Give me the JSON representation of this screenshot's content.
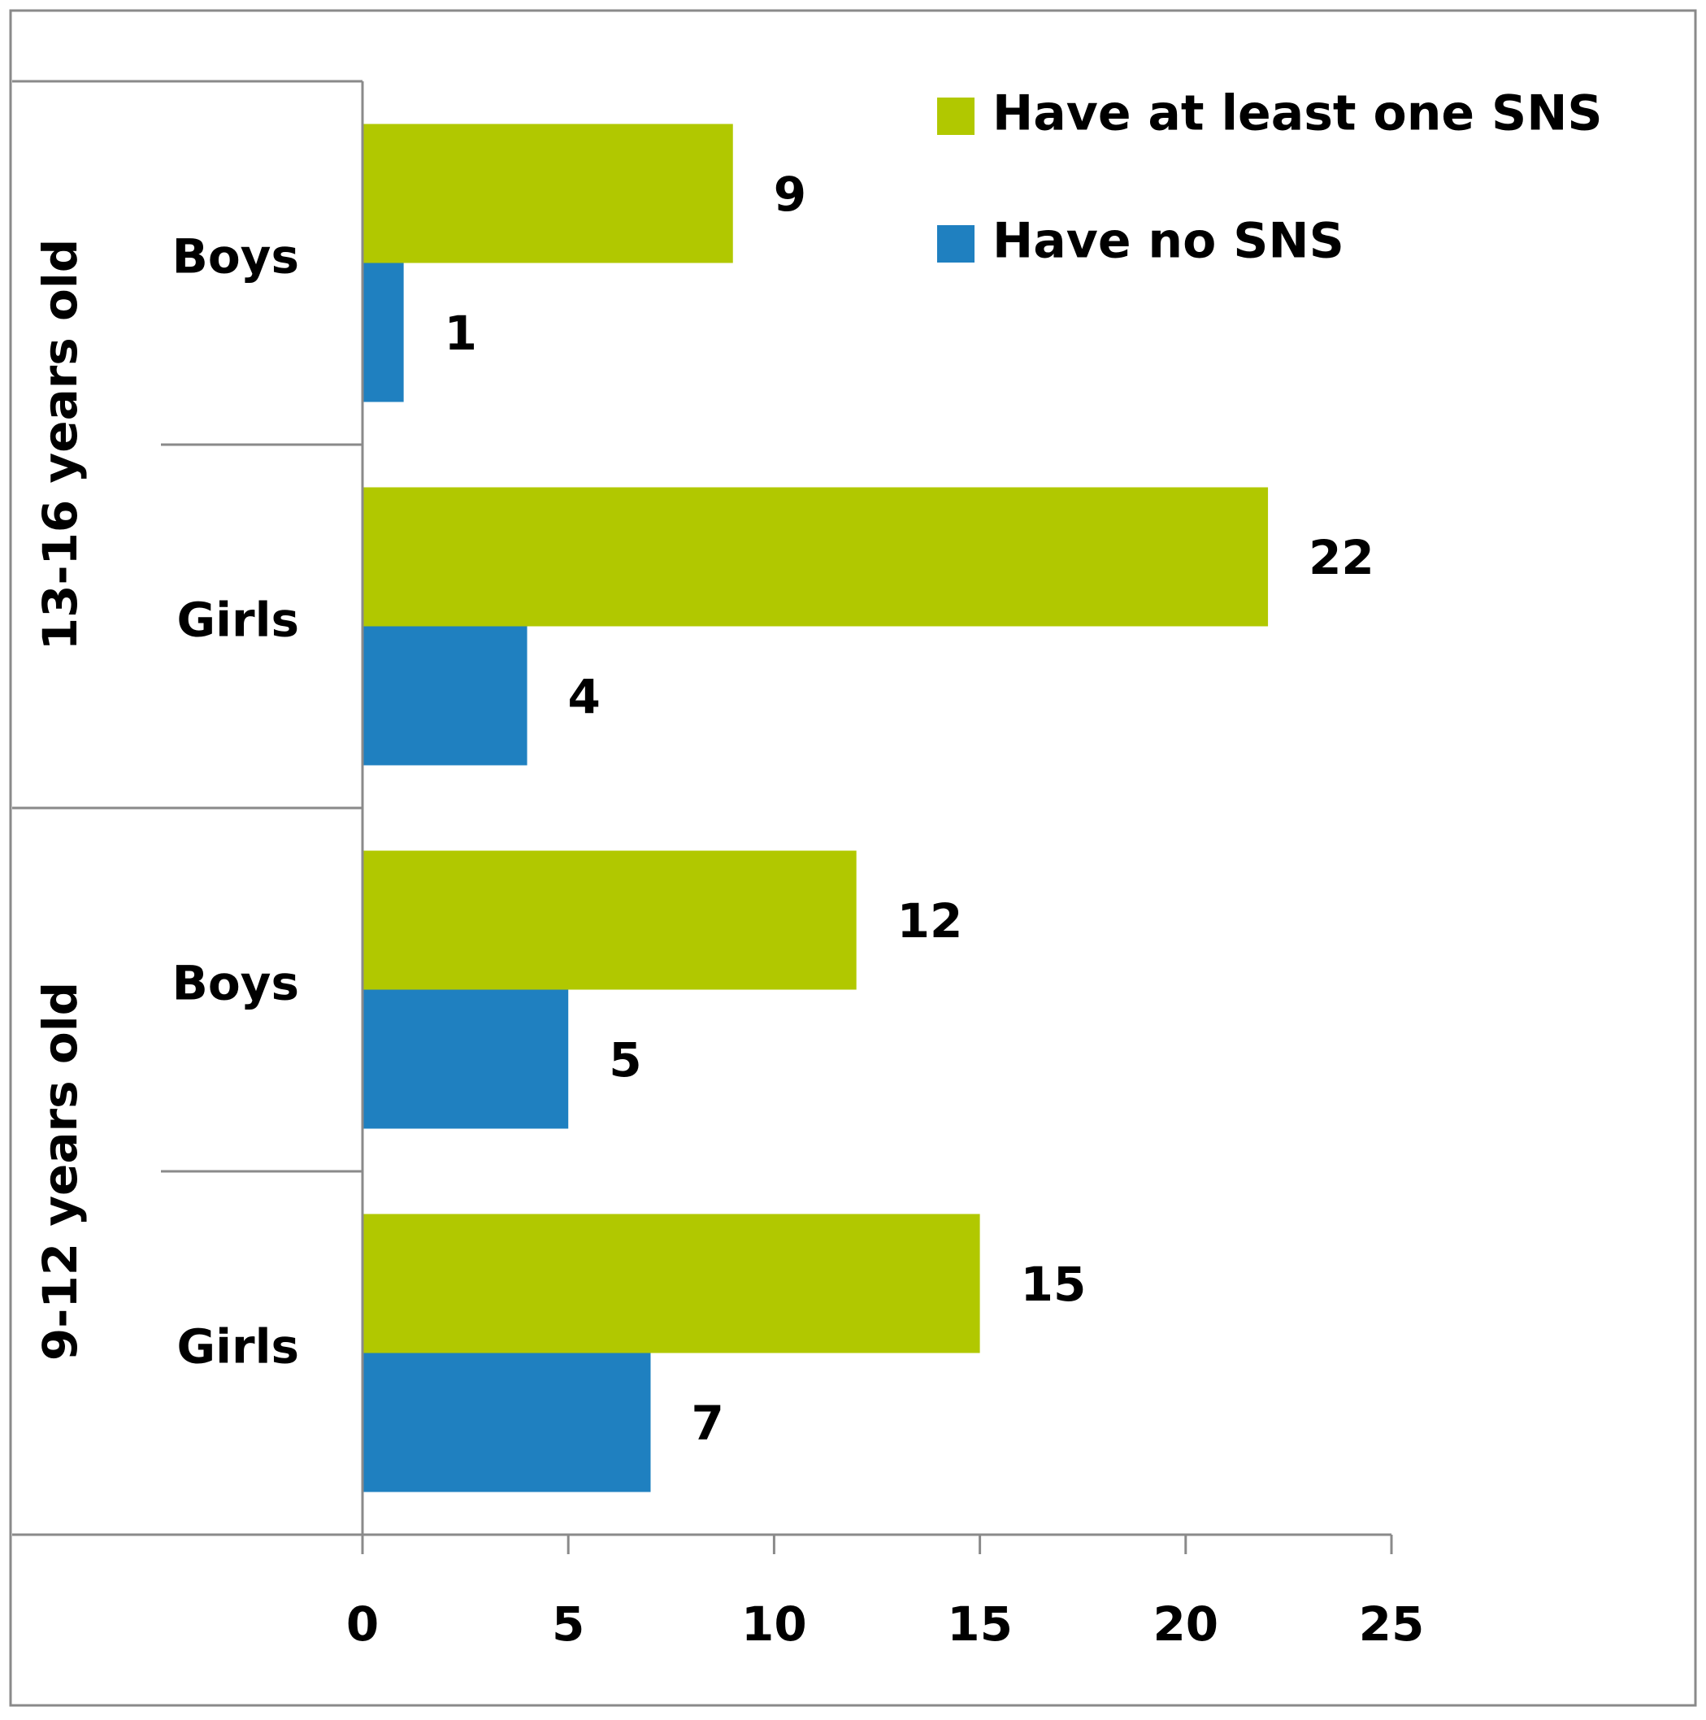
{
  "chart_data": {
    "type": "bar",
    "orientation": "horizontal",
    "groups": [
      {
        "label": "13-16 years old",
        "categories": [
          "Boys",
          "Girls"
        ]
      },
      {
        "label": "9-12 years old",
        "categories": [
          "Boys",
          "Girls"
        ]
      }
    ],
    "categories": [
      "Boys",
      "Girls",
      "Boys",
      "Girls"
    ],
    "series": [
      {
        "name": "Have at least one SNS",
        "color": "#b1c800",
        "values": [
          9,
          22,
          12,
          15
        ]
      },
      {
        "name": "Have no SNS",
        "color": "#1f80c0",
        "values": [
          1,
          4,
          5,
          7
        ]
      }
    ],
    "xlim": [
      0,
      25
    ],
    "xticks": [
      0,
      5,
      10,
      15,
      20,
      25
    ],
    "grid": false,
    "legend_position": "top-right",
    "data_labels": true
  }
}
